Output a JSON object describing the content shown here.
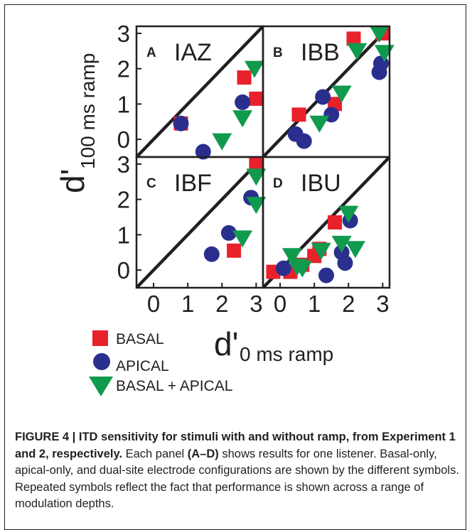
{
  "chart_data": [
    {
      "type": "scatter",
      "panel": "A",
      "title": "IAZ",
      "xlim": [
        -0.5,
        3.2
      ],
      "ylim": [
        -0.5,
        3.2
      ],
      "identity_line": true,
      "series": [
        {
          "name": "BASAL",
          "points": [
            [
              0.8,
              0.45
            ],
            [
              2.65,
              1.75
            ],
            [
              3.0,
              1.15
            ]
          ]
        },
        {
          "name": "APICAL",
          "points": [
            [
              0.8,
              0.45
            ],
            [
              1.45,
              -0.35
            ],
            [
              2.6,
              1.05
            ]
          ]
        },
        {
          "name": "BASAL + APICAL",
          "points": [
            [
              2.0,
              -0.05
            ],
            [
              2.6,
              0.6
            ],
            [
              2.95,
              2.0
            ]
          ]
        }
      ]
    },
    {
      "type": "scatter",
      "panel": "B",
      "title": "IBB",
      "xlim": [
        -0.5,
        3.2
      ],
      "ylim": [
        -0.5,
        3.2
      ],
      "identity_line": true,
      "series": [
        {
          "name": "BASAL",
          "points": [
            [
              0.55,
              0.7
            ],
            [
              1.6,
              1.0
            ],
            [
              2.15,
              2.85
            ],
            [
              3.0,
              3.0
            ]
          ]
        },
        {
          "name": "APICAL",
          "points": [
            [
              0.45,
              0.15
            ],
            [
              0.7,
              -0.05
            ],
            [
              1.25,
              1.2
            ],
            [
              1.5,
              0.7
            ],
            [
              2.9,
              1.9
            ],
            [
              2.95,
              2.15
            ]
          ]
        },
        {
          "name": "BASAL + APICAL",
          "points": [
            [
              1.15,
              0.45
            ],
            [
              1.8,
              1.3
            ],
            [
              2.25,
              2.5
            ],
            [
              2.9,
              3.0
            ],
            [
              3.05,
              2.45
            ]
          ]
        }
      ]
    },
    {
      "type": "scatter",
      "panel": "C",
      "title": "IBF",
      "xlim": [
        -0.5,
        3.2
      ],
      "ylim": [
        -0.5,
        3.2
      ],
      "identity_line": true,
      "series": [
        {
          "name": "BASAL",
          "points": [
            [
              2.35,
              0.55
            ],
            [
              3.0,
              3.0
            ]
          ]
        },
        {
          "name": "APICAL",
          "points": [
            [
              1.7,
              0.45
            ],
            [
              2.2,
              1.05
            ],
            [
              2.85,
              2.05
            ]
          ]
        },
        {
          "name": "BASAL + APICAL",
          "points": [
            [
              2.6,
              0.9
            ],
            [
              3.0,
              2.65
            ],
            [
              3.0,
              1.85
            ]
          ]
        }
      ]
    },
    {
      "type": "scatter",
      "panel": "D",
      "title": "IBU",
      "xlim": [
        -0.5,
        3.2
      ],
      "ylim": [
        -0.5,
        3.2
      ],
      "identity_line": true,
      "series": [
        {
          "name": "BASAL",
          "points": [
            [
              -0.2,
              -0.05
            ],
            [
              0.3,
              -0.05
            ],
            [
              0.65,
              0.15
            ],
            [
              1.0,
              0.4
            ],
            [
              1.15,
              0.6
            ],
            [
              1.6,
              1.35
            ]
          ]
        },
        {
          "name": "APICAL",
          "points": [
            [
              0.1,
              0.05
            ],
            [
              1.35,
              -0.15
            ],
            [
              1.8,
              0.5
            ],
            [
              1.9,
              0.2
            ],
            [
              2.05,
              1.4
            ]
          ]
        },
        {
          "name": "BASAL + APICAL",
          "points": [
            [
              0.35,
              0.4
            ],
            [
              0.5,
              0.1
            ],
            [
              0.65,
              0.05
            ],
            [
              1.2,
              0.55
            ],
            [
              1.8,
              0.75
            ],
            [
              2.0,
              1.6
            ],
            [
              2.2,
              0.6
            ]
          ]
        }
      ]
    }
  ],
  "axes": {
    "y_ticks": [
      "0",
      "1",
      "2",
      "3"
    ],
    "x_ticks": [
      "0",
      "1",
      "2",
      "3"
    ],
    "y_label_main": "d'",
    "y_label_sub": "100 ms ramp",
    "x_label_main": "d'",
    "x_label_sub": "0 ms ramp"
  },
  "legend": {
    "placement": "bottom-left",
    "items": [
      {
        "label": "BASAL",
        "marker": "square",
        "color": "#e8212b"
      },
      {
        "label": "APICAL",
        "marker": "circle",
        "color": "#2a2f8e"
      },
      {
        "label": "BASAL + APICAL",
        "marker": "triangle-down",
        "color": "#0f9a4e"
      }
    ]
  },
  "colors": {
    "basal": "#e8212b",
    "apical": "#2a2f8e",
    "both": "#0f9a4e",
    "ink": "#231f20"
  },
  "caption": {
    "figure_label": "FIGURE 4 | ITD sensitivity for stimuli with and without ramp, from Experiment 1 and 2, respectively.",
    "text_1": " Each panel ",
    "panels_ref": "(A–D)",
    "text_2": " shows results for one listener. Basal-only, apical-only, and dual-site electrode configurations are shown by the different symbols. Repeated symbols reflect the fact that performance is shown across a range of modulation depths."
  }
}
